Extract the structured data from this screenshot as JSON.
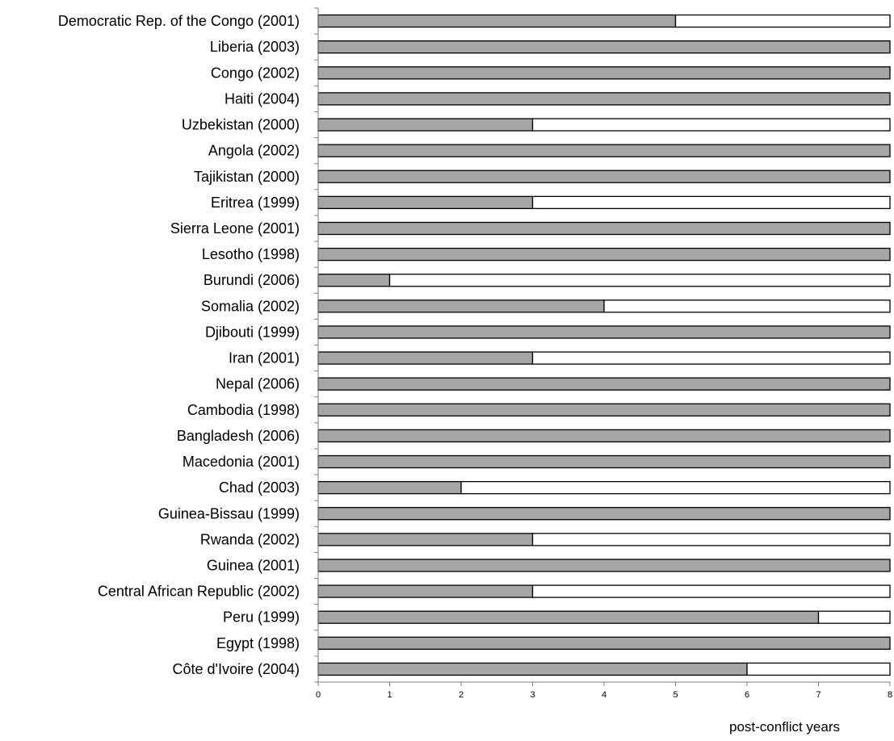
{
  "chart_data": {
    "type": "bar",
    "orientation": "horizontal",
    "stacked": true,
    "categories": [
      "Democratic Rep. of the Congo (2001)",
      "Liberia (2003)",
      "Congo (2002)",
      "Haiti (2004)",
      "Uzbekistan (2000)",
      "Angola (2002)",
      "Tajikistan (2000)",
      "Eritrea (1999)",
      "Sierra Leone (2001)",
      "Lesotho (1998)",
      "Burundi (2006)",
      "Somalia (2002)",
      "Djibouti (1999)",
      "Iran (2001)",
      "Nepal (2006)",
      "Cambodia (1998)",
      "Bangladesh (2006)",
      "Macedonia (2001)",
      "Chad (2003)",
      "Guinea-Bissau (1999)",
      "Rwanda (2002)",
      "Guinea (2001)",
      "Central African Republic (2002)",
      "Peru (1999)",
      "Egypt (1998)",
      "Côte d'Ivoire (2004)"
    ],
    "series": [
      {
        "color": "#a6a6a6",
        "values": [
          5,
          8,
          8,
          8,
          3,
          8,
          8,
          3,
          8,
          8,
          1,
          4,
          8,
          3,
          8,
          8,
          8,
          8,
          2,
          8,
          3,
          8,
          3,
          7,
          8,
          6
        ]
      },
      {
        "color": "#ffffff",
        "values": [
          3,
          0,
          0,
          0,
          5,
          0,
          0,
          5,
          0,
          0,
          7,
          4,
          0,
          5,
          0,
          0,
          0,
          0,
          6,
          0,
          5,
          0,
          5,
          1,
          0,
          2
        ]
      }
    ],
    "xlim": [
      0,
      8
    ],
    "xticks": [
      "0",
      "1",
      "2",
      "3",
      "4",
      "5",
      "6",
      "7",
      "8"
    ],
    "xlabel": "post-conflict years",
    "ylabel": "",
    "title": "",
    "legend": "none",
    "grid": false
  }
}
